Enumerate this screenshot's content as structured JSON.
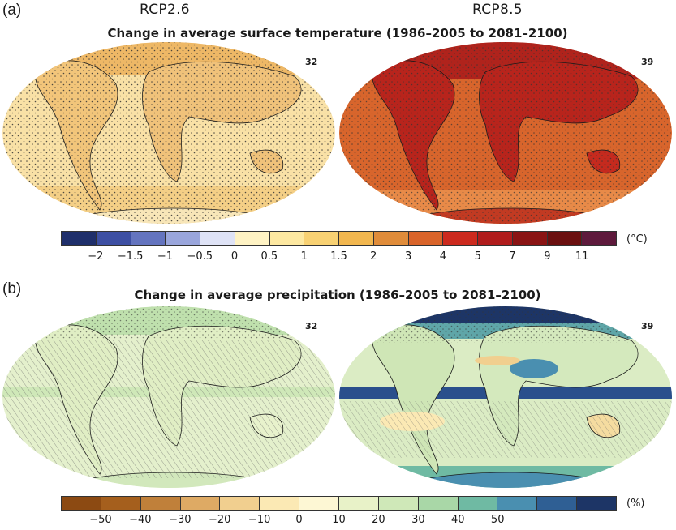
{
  "panel_a": {
    "label": "(a)",
    "scenario_left": "RCP2.6",
    "scenario_right": "RCP8.5",
    "title": "Change in average surface temperature (1986–2005 to 2081–2100)",
    "model_count_left": "32",
    "model_count_right": "39",
    "colorbar": {
      "unit": "(°C)",
      "colors": [
        "#1f2f6b",
        "#3d4fa3",
        "#6474bf",
        "#9aa6dc",
        "#dfe3f6",
        "#fff3c4",
        "#fde8a1",
        "#f8d173",
        "#f2b74f",
        "#e08c3a",
        "#d9642a",
        "#cc2a1e",
        "#b01c1c",
        "#8a1414",
        "#6b1010",
        "#5e1a3c"
      ],
      "ticks": [
        "−2",
        "−1.5",
        "−1",
        "−0.5",
        "0",
        "0.5",
        "1",
        "1.5",
        "2",
        "3",
        "4",
        "5",
        "7",
        "9",
        "11"
      ]
    }
  },
  "panel_b": {
    "label": "(b)",
    "title": "Change in average precipitation (1986–2005 to 2081–2100)",
    "model_count_left": "32",
    "model_count_right": "39",
    "colorbar": {
      "unit": "(%)",
      "colors": [
        "#8c4a12",
        "#a55f1d",
        "#c0803a",
        "#deaa64",
        "#f1cf8f",
        "#fbe9b4",
        "#fdf7d4",
        "#e8f2c8",
        "#cfe8b8",
        "#a9d7a7",
        "#6fbaa3",
        "#4a8fb0",
        "#2f5f94",
        "#1d3566"
      ],
      "ticks": [
        "−50",
        "−40",
        "−30",
        "−20",
        "−10",
        "0",
        "10",
        "20",
        "30",
        "40",
        "50"
      ]
    }
  },
  "maps": {
    "temp_left_fill": "#f6d58c",
    "temp_right_fill": "#d65a2a",
    "precip_left_fill": "#dcecc3",
    "precip_right_fill": "#c9e1b4",
    "land_outline": "#1a1a1a"
  }
}
